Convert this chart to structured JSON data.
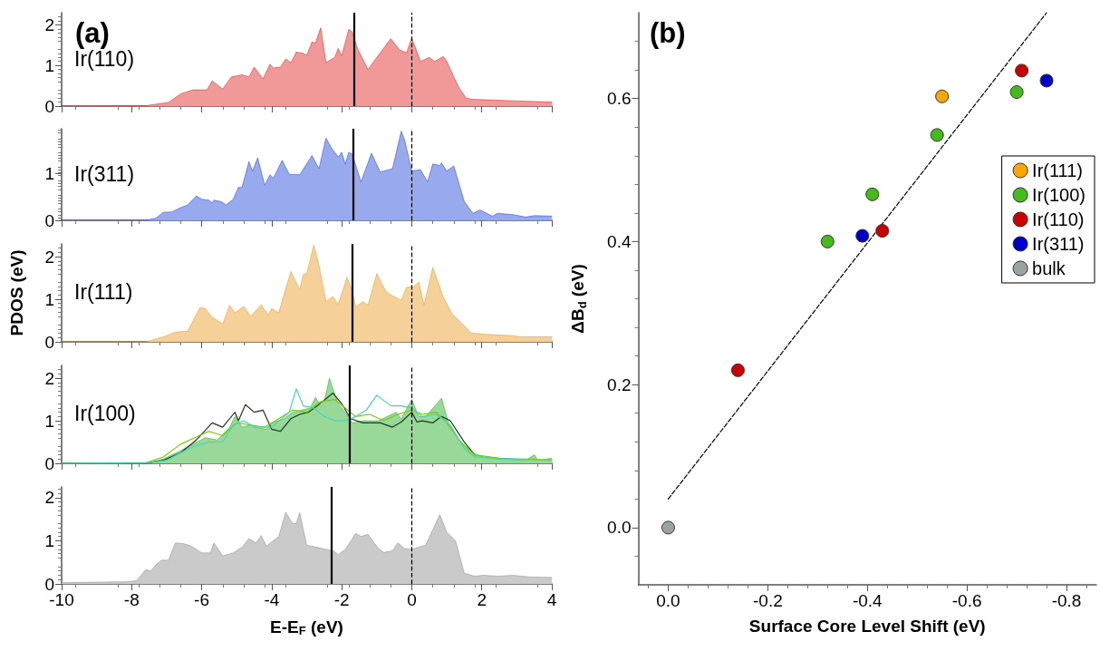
{
  "chart_data": [
    {
      "type": "area",
      "title": "(a)",
      "annotations": [
        "Ir(110)"
      ],
      "xlim": [
        -10,
        4
      ],
      "xticks": [
        -10,
        -8,
        -6,
        -4,
        -2,
        0,
        2,
        4
      ],
      "ylim": [
        0,
        2.3
      ],
      "yticks": [
        0,
        1,
        2
      ],
      "tick_labels": "y",
      "ref_lines": [
        {
          "axis": "x",
          "value": -1.66
        },
        {
          "axis": "x",
          "value": 0,
          "line_style": "dashed"
        }
      ],
      "series": [
        {
          "color": "#e01a1a",
          "x": [
            -10,
            -7.6,
            -6.95,
            -6.6,
            -6.25,
            -5.85,
            -5.7,
            -5.4,
            -5.15,
            -4.85,
            -4.65,
            -4.5,
            -4.25,
            -4.05,
            -3.95,
            -3.75,
            -3.6,
            -3.45,
            -3.3,
            -3.1,
            -3.0,
            -2.85,
            -2.75,
            -2.6,
            -2.45,
            -2.2,
            -2.1,
            -2.0,
            -1.8,
            -1.7,
            -1.55,
            -1.25,
            -1.0,
            -0.6,
            -0.35,
            -0.15,
            0,
            0.1,
            0.25,
            0.5,
            0.65,
            0.9,
            1.0,
            1.2,
            1.35,
            1.55,
            1.7,
            2.3,
            2.9,
            4
          ],
          "values": [
            0,
            0.01,
            0.09,
            0.3,
            0.4,
            0.4,
            0.62,
            0.42,
            0.72,
            0.77,
            0.72,
            0.96,
            0.67,
            1.03,
            0.94,
            0.96,
            1.16,
            1.07,
            1.33,
            1.3,
            1.25,
            1.58,
            1.55,
            1.93,
            1.07,
            1.2,
            1.42,
            1.24,
            1.89,
            1.83,
            1.42,
            0.9,
            1.2,
            1.66,
            1.39,
            1.31,
            1.68,
            1.45,
            1.1,
            1.2,
            1.1,
            1.22,
            1.1,
            0.72,
            0.45,
            0.2,
            0.17,
            0.15,
            0.13,
            0.1
          ]
        }
      ]
    },
    {
      "type": "area",
      "annotations": [
        "Ir(311)"
      ],
      "xlim": [
        -10,
        4
      ],
      "xticks": [
        -10,
        -8,
        -6,
        -4,
        -2,
        0,
        2,
        4
      ],
      "ylim": [
        0,
        1.95
      ],
      "yticks": [
        0,
        1
      ],
      "tick_labels": "y",
      "ref_lines": [
        {
          "axis": "x",
          "value": -1.68
        },
        {
          "axis": "x",
          "value": 0,
          "line_style": "dashed"
        }
      ],
      "series": [
        {
          "color": "#1a3fd8",
          "x": [
            -10,
            -7.6,
            -7.3,
            -7.1,
            -6.85,
            -6.6,
            -6.4,
            -6.15,
            -6.0,
            -5.8,
            -5.7,
            -5.65,
            -5.45,
            -5.3,
            -5.1,
            -4.95,
            -4.85,
            -4.65,
            -4.55,
            -4.4,
            -4.2,
            -4.05,
            -3.95,
            -3.7,
            -3.5,
            -3.2,
            -2.85,
            -2.65,
            -2.45,
            -2.3,
            -2.1,
            -2.0,
            -1.9,
            -1.8,
            -1.7,
            -1.45,
            -1.15,
            -0.9,
            -0.55,
            -0.3,
            -0.2,
            0,
            0.25,
            0.45,
            0.6,
            0.8,
            0.85,
            1.0,
            1.2,
            1.5,
            1.75,
            1.95,
            2.3,
            2.45,
            2.9,
            3.25,
            3.5,
            4
          ],
          "values": [
            0,
            0,
            0.05,
            0.17,
            0.18,
            0.27,
            0.33,
            0.52,
            0.45,
            0.43,
            0.37,
            0.43,
            0.4,
            0.33,
            0.45,
            0.7,
            0.7,
            1.25,
            1.05,
            1.33,
            0.75,
            0.97,
            0.9,
            1.28,
            0.98,
            0.97,
            1.38,
            1.1,
            1.75,
            1.55,
            1.35,
            1.45,
            1.2,
            1.45,
            1.41,
            0.82,
            1.43,
            1.03,
            1.1,
            1.9,
            1.7,
            1.05,
            1.08,
            0.82,
            1.2,
            1.17,
            1.22,
            1.05,
            1.16,
            0.4,
            0.15,
            0.22,
            0.09,
            0.15,
            0.12,
            0.07,
            0.1,
            0.09
          ]
        }
      ]
    },
    {
      "type": "area",
      "annotations": [
        "Ir(111)"
      ],
      "ylabel": "PDOS (eV)",
      "xlim": [
        -10,
        4
      ],
      "xticks": [
        -10,
        -8,
        -6,
        -4,
        -2,
        0,
        2,
        4
      ],
      "ylim": [
        0,
        2.3
      ],
      "yticks": [
        0,
        1,
        2
      ],
      "tick_labels": "y",
      "ref_lines": [
        {
          "axis": "x",
          "value": -1.7
        },
        {
          "axis": "x",
          "value": 0,
          "line_style": "dashed"
        }
      ],
      "series": [
        {
          "color": "#e8961a",
          "x": [
            -10,
            -7.6,
            -7.3,
            -7.05,
            -6.75,
            -6.4,
            -6.05,
            -5.9,
            -5.7,
            -5.4,
            -5.2,
            -5.05,
            -4.8,
            -4.6,
            -4.3,
            -4.1,
            -4.0,
            -3.8,
            -3.6,
            -3.45,
            -3.2,
            -3.1,
            -3.0,
            -2.8,
            -2.65,
            -2.45,
            -2.25,
            -2.1,
            -1.85,
            -1.7,
            -1.6,
            -1.4,
            -1.25,
            -1.0,
            -0.75,
            -0.6,
            -0.3,
            -0.15,
            0.05,
            0.2,
            0.35,
            0.6,
            0.9,
            1.15,
            1.45,
            1.7,
            2.05,
            2.8,
            3.1,
            4
          ],
          "values": [
            0,
            0,
            0.07,
            0.13,
            0.23,
            0.25,
            0.81,
            0.78,
            0.58,
            0.42,
            0.86,
            0.68,
            0.83,
            0.6,
            0.87,
            0.63,
            0.78,
            0.68,
            1.25,
            1.65,
            1.22,
            1.58,
            1.6,
            2.27,
            1.8,
            0.95,
            1.06,
            0.88,
            1.52,
            1.2,
            0.82,
            0.94,
            0.86,
            1.6,
            1.2,
            1.1,
            0.98,
            1.28,
            1.3,
            1.4,
            0.87,
            1.75,
            1.05,
            0.66,
            0.42,
            0.21,
            0.18,
            0.15,
            0.12,
            0.12
          ]
        }
      ]
    },
    {
      "type": "area",
      "annotations": [
        "Ir(100)"
      ],
      "xlim": [
        -10,
        4
      ],
      "xticks": [
        -10,
        -8,
        -6,
        -4,
        -2,
        0,
        2,
        4
      ],
      "ylim": [
        0,
        2.3
      ],
      "yticks": [
        0,
        1,
        2
      ],
      "tick_labels": "y",
      "ref_lines": [
        {
          "axis": "x",
          "value": -1.79
        },
        {
          "axis": "x",
          "value": 0,
          "line_style": "dashed"
        }
      ],
      "series": [
        {
          "color": "#1aa81a",
          "x": [
            -10,
            -7.6,
            -7.1,
            -6.6,
            -6.25,
            -5.9,
            -5.55,
            -5.2,
            -5.05,
            -4.85,
            -4.6,
            -4.45,
            -4.15,
            -4.0,
            -3.65,
            -3.4,
            -3.15,
            -2.9,
            -2.75,
            -2.6,
            -2.5,
            -2.35,
            -2.25,
            -2.1,
            -1.9,
            -1.7,
            -1.4,
            -0.95,
            -0.7,
            -0.45,
            -0.3,
            0,
            0.2,
            0.4,
            0.85,
            1.05,
            1.35,
            1.7,
            2.05,
            2.75,
            3.25,
            3.5,
            3.6,
            4
          ],
          "values": [
            0,
            0,
            0.1,
            0.3,
            0.45,
            0.6,
            0.55,
            0.85,
            1.1,
            0.85,
            0.9,
            0.85,
            0.8,
            0.95,
            1.05,
            1.2,
            1.25,
            1.3,
            1.55,
            1.35,
            1.45,
            2.0,
            1.75,
            1.4,
            1.2,
            0.95,
            1.0,
            1.0,
            1.1,
            1.2,
            1.05,
            1.5,
            1.1,
            1.1,
            1.53,
            0.95,
            0.55,
            0.25,
            0.15,
            0.1,
            0.07,
            0.2,
            0.07,
            0.12
          ]
        },
        {
          "type": "line",
          "color": "#1c3a1c",
          "x": [
            -10,
            -7.6,
            -7.1,
            -6.6,
            -6.15,
            -5.7,
            -5.4,
            -5.05,
            -4.95,
            -4.75,
            -4.5,
            -4.25,
            -4.0,
            -3.75,
            -3.45,
            -3.2,
            -2.95,
            -2.7,
            -2.25,
            -2.0,
            -1.75,
            -1.4,
            -0.9,
            -0.55,
            -0.3,
            0,
            0.15,
            0.3,
            0.6,
            0.85,
            1.1,
            1.5,
            1.8
          ],
          "values": [
            0,
            0,
            0.07,
            0.25,
            0.55,
            0.95,
            0.85,
            1.2,
            1.0,
            1.38,
            1.2,
            1.25,
            0.8,
            0.75,
            1.05,
            1.15,
            1.2,
            1.35,
            1.65,
            1.4,
            1.05,
            0.95,
            0.95,
            0.85,
            0.97,
            1.2,
            0.97,
            1.0,
            0.95,
            1.1,
            1.0,
            0.5,
            0.2
          ]
        },
        {
          "type": "line",
          "color": "#7acc00",
          "x": [
            -10,
            -7.6,
            -7.1,
            -6.6,
            -6.2,
            -5.8,
            -5.4,
            -5.0,
            -4.6,
            -4.2,
            -3.8,
            -3.4,
            -3.0,
            -2.6,
            -2.2,
            -1.9,
            -1.6,
            -1.2,
            -0.8,
            -0.4,
            0,
            0.3,
            0.7,
            1.0,
            1.4,
            1.8,
            2.5,
            4
          ],
          "values": [
            0,
            0.01,
            0.15,
            0.45,
            0.6,
            0.75,
            0.65,
            0.95,
            0.9,
            0.85,
            1.05,
            1.25,
            1.2,
            1.45,
            1.5,
            1.3,
            1.1,
            1.15,
            1.0,
            1.15,
            1.25,
            1.15,
            1.2,
            0.95,
            0.5,
            0.2,
            0.12,
            0.08
          ]
        },
        {
          "type": "line",
          "color": "#40d8b8",
          "x": [
            -10,
            -7.5,
            -7.0,
            -6.6,
            -6.2,
            -5.8,
            -5.4,
            -5.1,
            -4.8,
            -4.5,
            -4.0,
            -3.5,
            -3.3,
            -3.1,
            -2.8,
            -2.5,
            -2.2,
            -1.9,
            -1.6,
            -1.3,
            -1.0,
            -0.6,
            -0.3,
            0,
            0.3,
            0.7,
            1.1,
            1.5,
            1.8,
            2.5,
            3.5,
            4
          ],
          "values": [
            0,
            0.02,
            0.07,
            0.25,
            0.4,
            0.5,
            0.5,
            0.9,
            1.0,
            0.85,
            0.85,
            1.2,
            1.75,
            1.35,
            1.3,
            1.1,
            1.0,
            1.0,
            1.1,
            1.25,
            1.6,
            1.35,
            1.35,
            1.3,
            1.1,
            1.15,
            0.9,
            0.35,
            0.15,
            0.1,
            0.08,
            0.07
          ]
        }
      ]
    },
    {
      "type": "area",
      "xlabel": "E-E$_{F}$ (eV)",
      "xlim": [
        -10,
        4
      ],
      "xticks": [
        -10,
        -8,
        -6,
        -4,
        -2,
        0,
        2,
        4
      ],
      "ylim": [
        0,
        2.25
      ],
      "yticks": [
        0,
        1,
        2
      ],
      "ref_lines": [
        {
          "axis": "x",
          "value": -2.29
        },
        {
          "axis": "x",
          "value": 0,
          "line_style": "dashed"
        }
      ],
      "series": [
        {
          "color": "#8a8a8a",
          "x": [
            -10,
            -8.1,
            -7.85,
            -7.6,
            -7.45,
            -7.3,
            -7.15,
            -6.95,
            -6.75,
            -6.5,
            -6.3,
            -6.0,
            -5.75,
            -5.65,
            -5.4,
            -5.1,
            -4.85,
            -4.65,
            -4.45,
            -4.3,
            -4.15,
            -3.8,
            -3.6,
            -3.4,
            -3.3,
            -3.2,
            -3.0,
            -2.7,
            -2.45,
            -2.25,
            -2.1,
            -1.9,
            -1.6,
            -1.45,
            -1.25,
            -0.95,
            -0.8,
            -0.55,
            -0.4,
            -0.2,
            0,
            0.3,
            0.4,
            0.8,
            1.0,
            1.25,
            1.5,
            1.8,
            2.05,
            2.45,
            2.9,
            3.4,
            4
          ],
          "values": [
            0.03,
            0.05,
            0.08,
            0.33,
            0.3,
            0.45,
            0.55,
            0.55,
            0.95,
            0.93,
            0.88,
            0.72,
            0.72,
            0.95,
            0.65,
            0.72,
            0.85,
            1.05,
            0.95,
            1.12,
            0.88,
            1.1,
            1.66,
            1.4,
            1.4,
            1.65,
            0.9,
            0.85,
            0.8,
            0.78,
            0.68,
            0.8,
            1.17,
            1.1,
            1.15,
            0.82,
            0.73,
            0.77,
            0.95,
            0.82,
            0.8,
            0.88,
            0.9,
            1.61,
            1.2,
            1.0,
            0.25,
            0.18,
            0.2,
            0.18,
            0.2,
            0.16,
            0.15
          ]
        }
      ]
    },
    {
      "type": "scatter",
      "title": "(b)",
      "xlabel": "Surface Core Level Shift (eV)",
      "ylabel": "ΔB$_{d}$ (eV)",
      "xlim": [
        0.06,
        -0.86
      ],
      "xticks": [
        {
          "value": 0,
          "label": "0.0"
        },
        -0.2,
        -0.4,
        -0.6,
        -0.8
      ],
      "ylim": [
        -0.08,
        0.72
      ],
      "yticks": [
        {
          "value": 0,
          "label": "0.0"
        },
        0.2,
        0.4,
        0.6
      ],
      "legend": "right",
      "marker": "circle",
      "series": [
        {
          "name": "Ir(111)",
          "color": "#ffa500",
          "x": [
            -0.55
          ],
          "values": [
            0.603
          ]
        },
        {
          "name": "Ir(100)",
          "color": "#44bb1a",
          "x": [
            -0.32,
            -0.41,
            -0.54,
            -0.7
          ],
          "values": [
            0.4,
            0.466,
            0.549,
            0.609
          ]
        },
        {
          "name": "Ir(110)",
          "color": "#cc0000",
          "x": [
            -0.14,
            -0.43,
            -0.71
          ],
          "values": [
            0.22,
            0.415,
            0.639
          ]
        },
        {
          "name": "Ir(311)",
          "color": "#0000cc",
          "x": [
            -0.39,
            -0.76
          ],
          "values": [
            0.408,
            0.625
          ]
        },
        {
          "name": "bulk",
          "color": "#99a3a3",
          "x": [
            0
          ],
          "values": [
            0
          ]
        },
        {
          "type": "line",
          "color": "#000000",
          "line_style": "dashed",
          "marker": "none",
          "x": [
            0,
            -0.76
          ],
          "values": [
            0.04,
            0.72
          ]
        }
      ]
    }
  ]
}
